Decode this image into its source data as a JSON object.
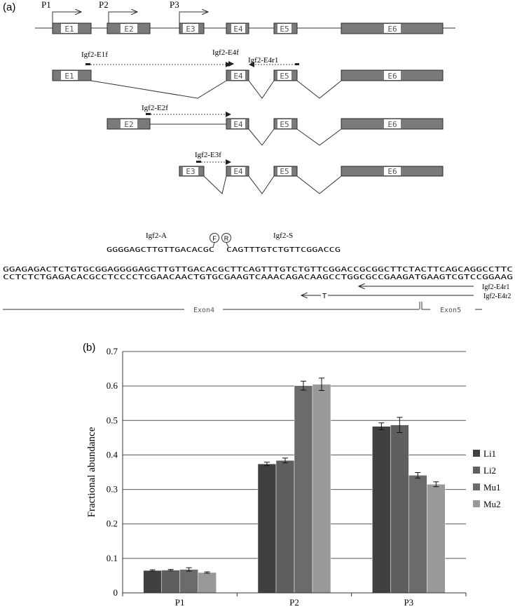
{
  "panel_a": {
    "label": "(a)",
    "promoters": [
      "P1",
      "P2",
      "P3"
    ],
    "exons": [
      "E1",
      "E2",
      "E3",
      "E4",
      "E5",
      "E6"
    ],
    "primers": {
      "e1f": "Igf2-E1f",
      "e4f": "Igf2-E4f",
      "e4r1": "Igf2-E4r1",
      "e2f": "Igf2-E2f",
      "e3f": "Igf2-E3f"
    },
    "probe": {
      "a": "Igf2-A",
      "s": "Igf2-S",
      "f": "F",
      "r": "R",
      "probe_seq": "GGGGAGCTTGTTGACACGC",
      "probe_seq2": "CAGTTTGTCTGTTCGGACCG"
    },
    "seq_top": "GGAGAGACTCTGTGCGGAGGGGAGCTTGTTGACACGCTTCAGTTTGTCTGTTCGGACCGCGGCTTCTACTTCAGCAGGCCTTC",
    "seq_bottom": "CCTCTCTGAGACACGCCTCCCCTCGAACAACTGTGCGAAGTCAAACAGACAAGCCTGGCGCCGAAGATGAAGTCGTCCGGAAG",
    "rev1": "Igf2-E4r1",
    "rev2": "Igf2-E4r2",
    "rev2_mark": "T",
    "exon4_label": "Exon4",
    "exon5_label": "Exon5"
  },
  "panel_b": {
    "label": "(b)"
  },
  "chart_data": {
    "type": "bar",
    "categories": [
      "P1",
      "P2",
      "P3"
    ],
    "series": [
      {
        "name": "Li1",
        "values": [
          0.065,
          0.374,
          0.483
        ],
        "errors": [
          0.002,
          0.005,
          0.01
        ],
        "color": "#404040"
      },
      {
        "name": "Li2",
        "values": [
          0.066,
          0.384,
          0.487
        ],
        "errors": [
          0.002,
          0.007,
          0.022
        ],
        "color": "#5f5f5f"
      },
      {
        "name": "Mu1",
        "values": [
          0.068,
          0.601,
          0.341
        ],
        "errors": [
          0.005,
          0.013,
          0.008
        ],
        "color": "#6b6b6b"
      },
      {
        "name": "Mu2",
        "values": [
          0.059,
          0.605,
          0.315
        ],
        "errors": [
          0.002,
          0.018,
          0.007
        ],
        "color": "#999999"
      }
    ],
    "ylabel": "Fractional abundance",
    "ylim": [
      0,
      0.7
    ],
    "yticks": [
      "0",
      "0.1",
      "0.2",
      "0.3",
      "0.4",
      "0.5",
      "0.6",
      "0.7"
    ],
    "grid": true,
    "legend": "right"
  }
}
